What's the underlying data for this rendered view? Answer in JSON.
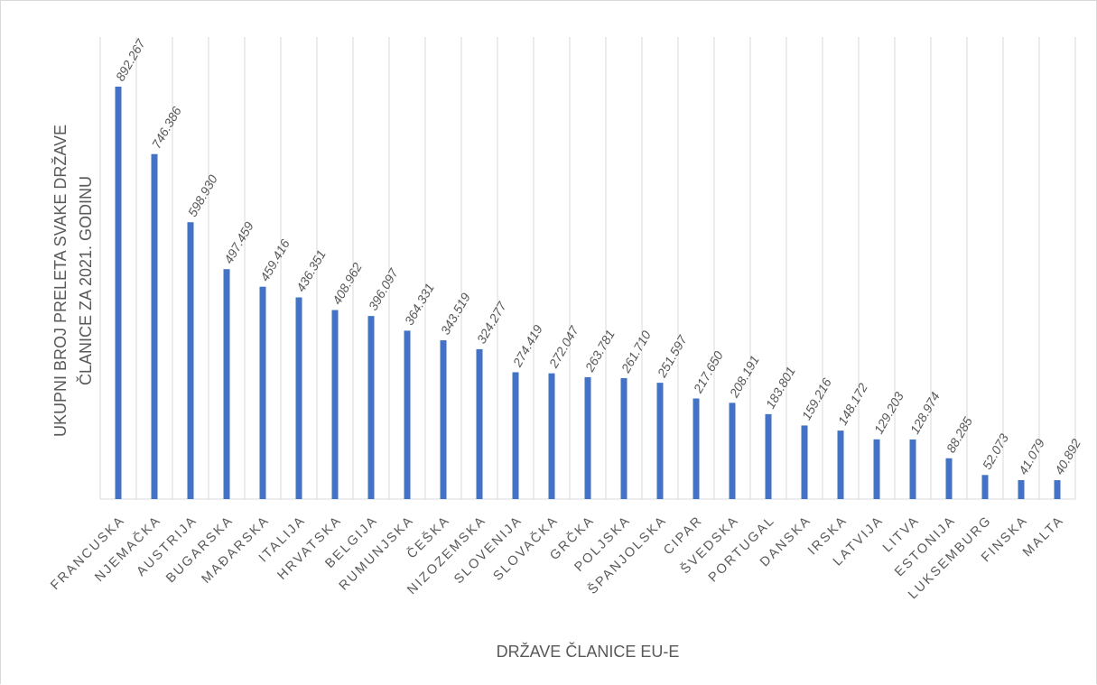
{
  "chart_data": {
    "type": "bar",
    "title": "",
    "xlabel": "DRŽAVE ČLANICE EU-E",
    "ylabel_lines": [
      "UKUPNI BROJ PRELETA SVAKE DRŽAVE",
      "ČLANICE ZA 2021. GODINU"
    ],
    "categories": [
      "FRANCUSKA",
      "NJEMAČKA",
      "AUSTRIJA",
      "BUGARSKA",
      "MAĐARSKA",
      "ITALIJA",
      "HRVATSKA",
      "BELGIJA",
      "RUMUNJSKA",
      "ČEŠKA",
      "NIZOZEMSKA",
      "SLOVENIJA",
      "SLOVAČKA",
      "GRČKA",
      "POLJSKA",
      "ŠPANJOLSKA",
      "CIPAR",
      "ŠVEDSKA",
      "PORTUGAL",
      "DANSKA",
      "IRSKA",
      "LATVIJA",
      "LITVA",
      "ESTONIJA",
      "LUKSEMBURG",
      "FINSKA",
      "MALTA"
    ],
    "values": [
      892267,
      746386,
      598930,
      497459,
      459416,
      436351,
      408962,
      396097,
      364331,
      343519,
      324277,
      274419,
      272047,
      263781,
      261710,
      251597,
      217650,
      208191,
      183801,
      159216,
      148172,
      129203,
      128974,
      88285,
      52073,
      41079,
      40892
    ],
    "data_labels": [
      "892.267",
      "746.386",
      "598.930",
      "497.459",
      "459.416",
      "436.351",
      "408.962",
      "396.097",
      "364.331",
      "343.519",
      "324.277",
      "274.419",
      "272.047",
      "263.781",
      "261.710",
      "251.597",
      "217.650",
      "208.191",
      "183.801",
      "159.216",
      "148.172",
      "129.203",
      "128.974",
      "88.285",
      "52.073",
      "41.079",
      "40.892"
    ],
    "ylim": [
      0,
      892267
    ],
    "grid": "vertical",
    "legend": "none",
    "bar_color": "#4472c4"
  }
}
